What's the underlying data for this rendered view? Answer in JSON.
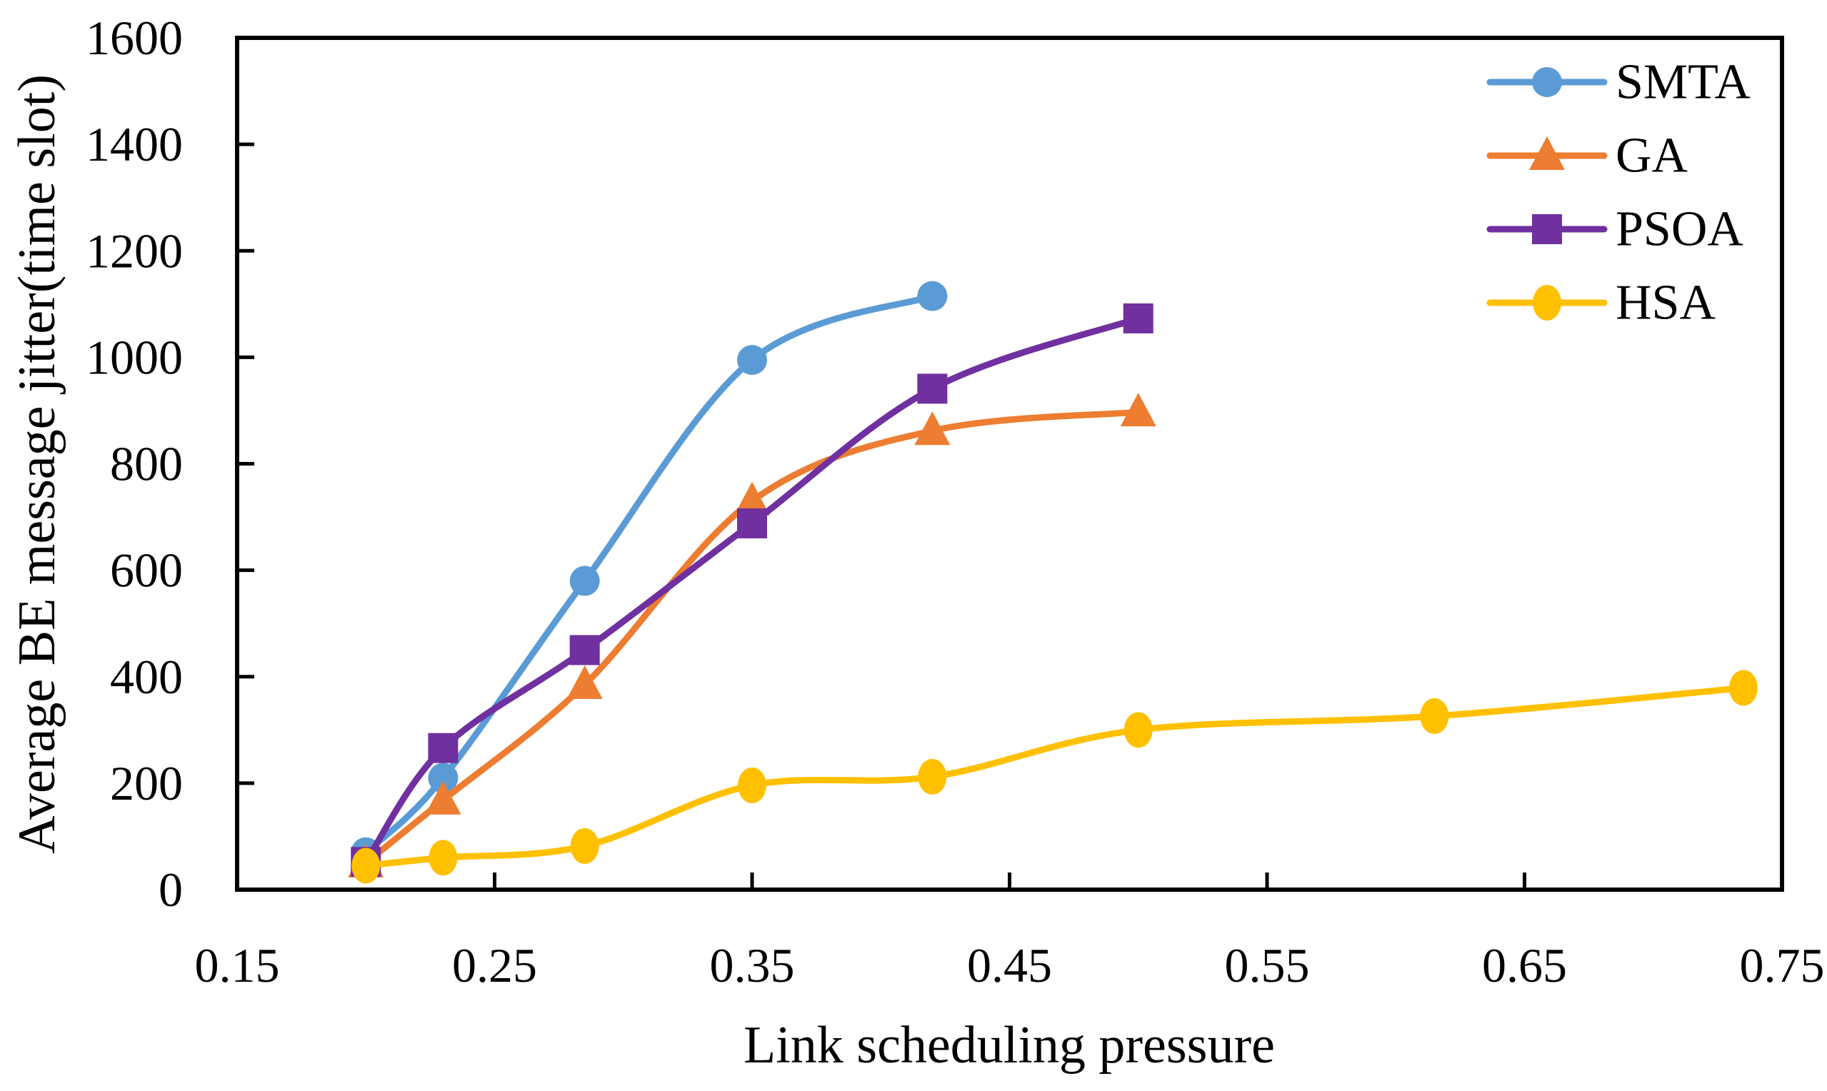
{
  "figure": {
    "background": "#ffffff",
    "axis_color": "#000000"
  },
  "chart_data": {
    "type": "line",
    "title": "",
    "xlabel": "Link scheduling pressure",
    "ylabel": "Average BE message jitter(time slot)",
    "xlim": [
      0.15,
      0.75
    ],
    "ylim": [
      0,
      1600
    ],
    "xticks": [
      0.15,
      0.25,
      0.35,
      0.45,
      0.55,
      0.65,
      0.75
    ],
    "xtick_labels": [
      "0.15",
      "0.25",
      "0.35",
      "0.45",
      "0.55",
      "0.65",
      "0.75"
    ],
    "yticks": [
      0,
      200,
      400,
      600,
      800,
      1000,
      1200,
      1400,
      1600
    ],
    "ytick_labels": [
      "0",
      "200",
      "400",
      "600",
      "800",
      "1000",
      "1200",
      "1400",
      "1600"
    ],
    "grid": false,
    "legend_position": "top-right-inside",
    "series": [
      {
        "name": "SMTA",
        "color": "#5B9BD5",
        "marker": "circle",
        "smooth": true,
        "points": [
          [
            0.2,
            70
          ],
          [
            0.23,
            210
          ],
          [
            0.285,
            580
          ],
          [
            0.35,
            995
          ],
          [
            0.42,
            1115
          ]
        ]
      },
      {
        "name": "GA",
        "color": "#ED7D31",
        "marker": "triangle",
        "smooth": true,
        "points": [
          [
            0.2,
            50
          ],
          [
            0.23,
            168
          ],
          [
            0.285,
            385
          ],
          [
            0.35,
            730
          ],
          [
            0.42,
            862
          ],
          [
            0.5,
            897
          ]
        ]
      },
      {
        "name": "PSOA",
        "color": "#7030A0",
        "marker": "square",
        "smooth": true,
        "points": [
          [
            0.2,
            52
          ],
          [
            0.23,
            266
          ],
          [
            0.285,
            450
          ],
          [
            0.35,
            688
          ],
          [
            0.42,
            941
          ],
          [
            0.5,
            1073
          ]
        ]
      },
      {
        "name": "HSA",
        "color": "#FFC000",
        "marker": "ellipse",
        "smooth": true,
        "points": [
          [
            0.2,
            45
          ],
          [
            0.23,
            60
          ],
          [
            0.285,
            82
          ],
          [
            0.35,
            196
          ],
          [
            0.42,
            212
          ],
          [
            0.5,
            300
          ],
          [
            0.615,
            326
          ],
          [
            0.735,
            379
          ]
        ]
      }
    ]
  }
}
